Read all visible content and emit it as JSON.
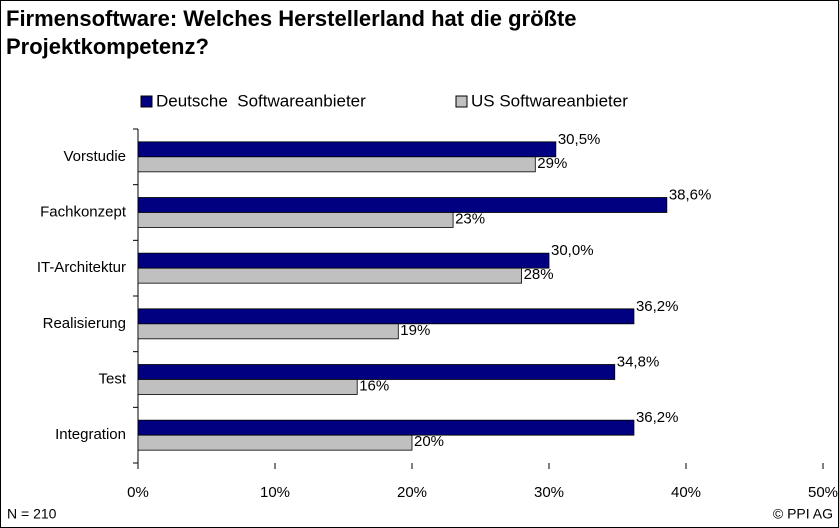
{
  "chart_data": {
    "type": "bar",
    "orientation": "horizontal",
    "title": "Firmensoftware: Welches Herstellerland hat die größte Projektkompetenz?",
    "categories": [
      "Vorstudie",
      "Fachkonzept",
      "IT-Architektur",
      "Realisierung",
      "Test",
      "Integration"
    ],
    "series": [
      {
        "name": "Deutsche  Softwareanbieter",
        "color": "#000080",
        "values": [
          30.5,
          38.6,
          30.0,
          36.2,
          34.8,
          36.2
        ],
        "value_labels": [
          "30,5%",
          "38,6%",
          "30,0%",
          "36,2%",
          "34,8%",
          "36,2%"
        ]
      },
      {
        "name": "US Softwareanbieter",
        "color": "#c0c0c0",
        "values": [
          29,
          23,
          28,
          19,
          16,
          20
        ],
        "value_labels": [
          "29%",
          "23%",
          "28%",
          "19%",
          "16%",
          "20%"
        ]
      }
    ],
    "xlim": [
      0,
      50
    ],
    "xticks": [
      {
        "value": 0,
        "label": "0%"
      },
      {
        "value": 10,
        "label": "10%"
      },
      {
        "value": 20,
        "label": "20%"
      },
      {
        "value": 30,
        "label": "30%"
      },
      {
        "value": 40,
        "label": "40%"
      },
      {
        "value": 50,
        "label": "50%"
      }
    ],
    "legend": "top",
    "notes": [
      "N = 210",
      "© PPI AG"
    ]
  }
}
